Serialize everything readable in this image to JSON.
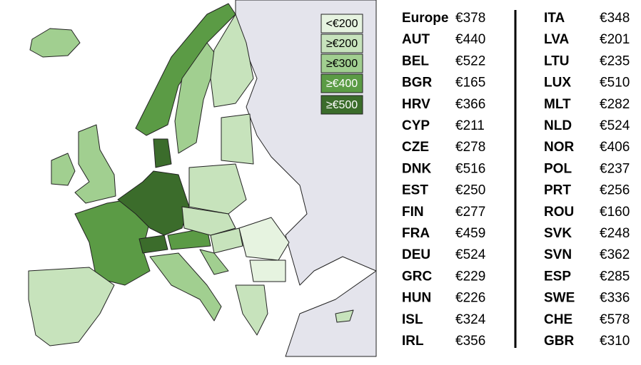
{
  "legend": [
    {
      "label": "<€200",
      "color": "#e6f3e0"
    },
    {
      "label": "≥€200",
      "color": "#c7e3bc"
    },
    {
      "label": "≥€300",
      "color": "#a1cf90"
    },
    {
      "label": "≥€400",
      "color": "#5b9b45"
    },
    {
      "label": "≥€500",
      "color": "#3b6c2b"
    }
  ],
  "table": {
    "left": [
      [
        "Europe",
        "€378"
      ],
      [
        "AUT",
        "€440"
      ],
      [
        "BEL",
        "€522"
      ],
      [
        "BGR",
        "€165"
      ],
      [
        "HRV",
        "€366"
      ],
      [
        "CYP",
        "€211"
      ],
      [
        "CZE",
        "€278"
      ],
      [
        "DNK",
        "€516"
      ],
      [
        "EST",
        "€250"
      ],
      [
        "FIN",
        "€277"
      ],
      [
        "FRA",
        "€459"
      ],
      [
        "DEU",
        "€524"
      ],
      [
        "GRC",
        "€229"
      ],
      [
        "HUN",
        "€226"
      ],
      [
        "ISL",
        "€324"
      ],
      [
        "IRL",
        "€356"
      ]
    ],
    "right": [
      [
        "ITA",
        "€348"
      ],
      [
        "LVA",
        "€201"
      ],
      [
        "LTU",
        "€235"
      ],
      [
        "LUX",
        "€510"
      ],
      [
        "MLT",
        "€282"
      ],
      [
        "NLD",
        "€524"
      ],
      [
        "NOR",
        "€406"
      ],
      [
        "POL",
        "€237"
      ],
      [
        "PRT",
        "€256"
      ],
      [
        "ROU",
        "€160"
      ],
      [
        "SVK",
        "€248"
      ],
      [
        "SVN",
        "€362"
      ],
      [
        "ESP",
        "€285"
      ],
      [
        "SWE",
        "€336"
      ],
      [
        "CHE",
        "€578"
      ],
      [
        "GBR",
        "€310"
      ]
    ]
  }
}
